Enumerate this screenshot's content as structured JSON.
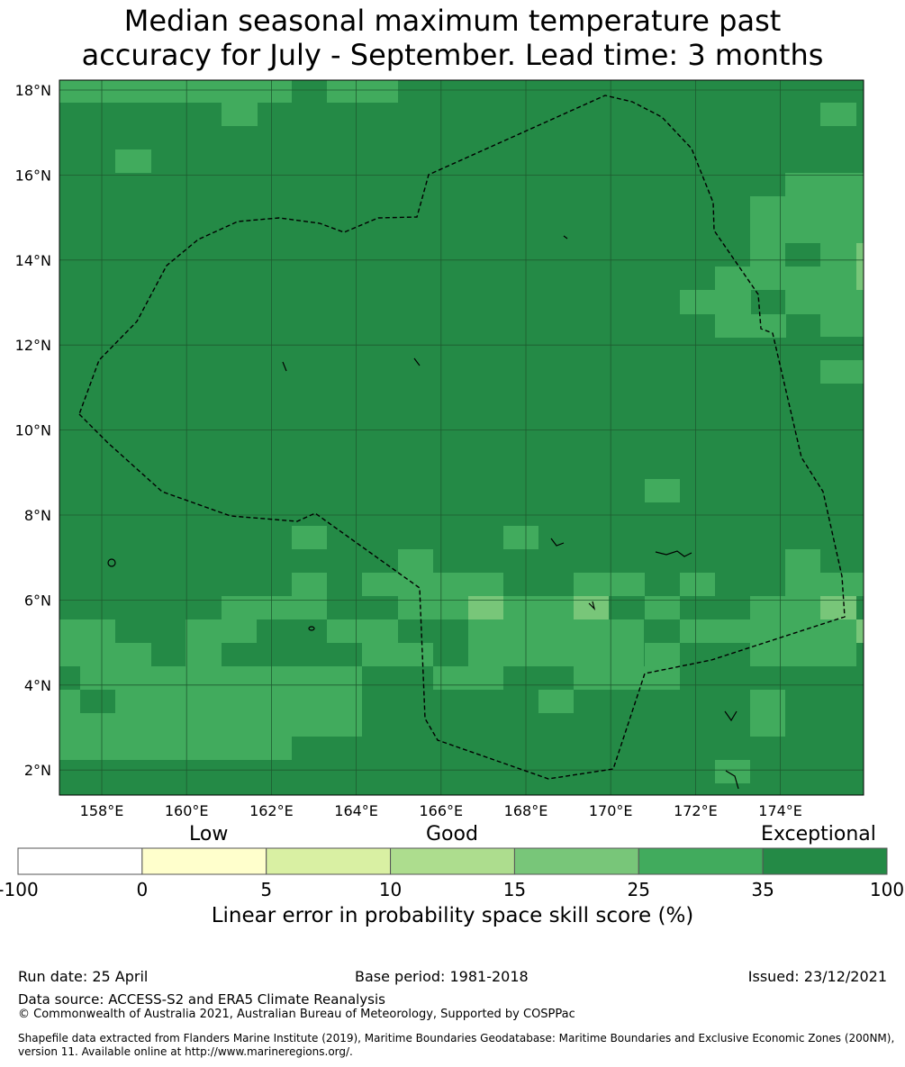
{
  "title": {
    "line1": "Median seasonal maximum temperature past",
    "line2": "accuracy for July - September. Lead time: 3 months"
  },
  "map": {
    "lat_labels": [
      "18°N",
      "16°N",
      "14°N",
      "12°N",
      "10°N",
      "8°N",
      "6°N",
      "4°N",
      "2°N"
    ],
    "lon_labels": [
      "158°E",
      "160°E",
      "162°E",
      "164°E",
      "166°E",
      "168°E",
      "170°E",
      "172°E",
      "174°E"
    ],
    "lat_values": [
      18,
      16,
      14,
      12,
      10,
      8,
      6,
      4,
      2
    ],
    "lon_values": [
      158,
      160,
      162,
      164,
      166,
      168,
      170,
      172,
      174
    ],
    "colors": {
      "exceptional": "#248a46",
      "mid": "#41ab5d",
      "light": "#78c679"
    }
  },
  "colorbar": {
    "categories": [
      "Low",
      "Good",
      "Exceptional"
    ],
    "ticks": [
      "-100",
      "0",
      "5",
      "10",
      "15",
      "25",
      "35",
      "100"
    ],
    "bins": [
      "#ffffff",
      "#ffffcc",
      "#d9f0a3",
      "#addd8e",
      "#78c679",
      "#41ab5d",
      "#248a46"
    ],
    "title": "Linear error in probability space skill score (%)"
  },
  "footer": {
    "run_date": "Run date: 25 April",
    "base_period": "Base period: 1981-2018",
    "issued": "Issued: 23/12/2021",
    "data_source": "Data source: ACCESS-S2 and ERA5 Climate Reanalysis",
    "copyright": "© Commonwealth of Australia 2021, Australian Bureau of Meteorology, Supported by COSPPac",
    "shapefile": "Shapefile data extracted from Flanders Marine Institute (2019), Maritime Boundaries Geodatabase: Maritime Boundaries and Exclusive Economic Zones (200NM), version 11. Available online at http://www.marineregions.org/."
  }
}
